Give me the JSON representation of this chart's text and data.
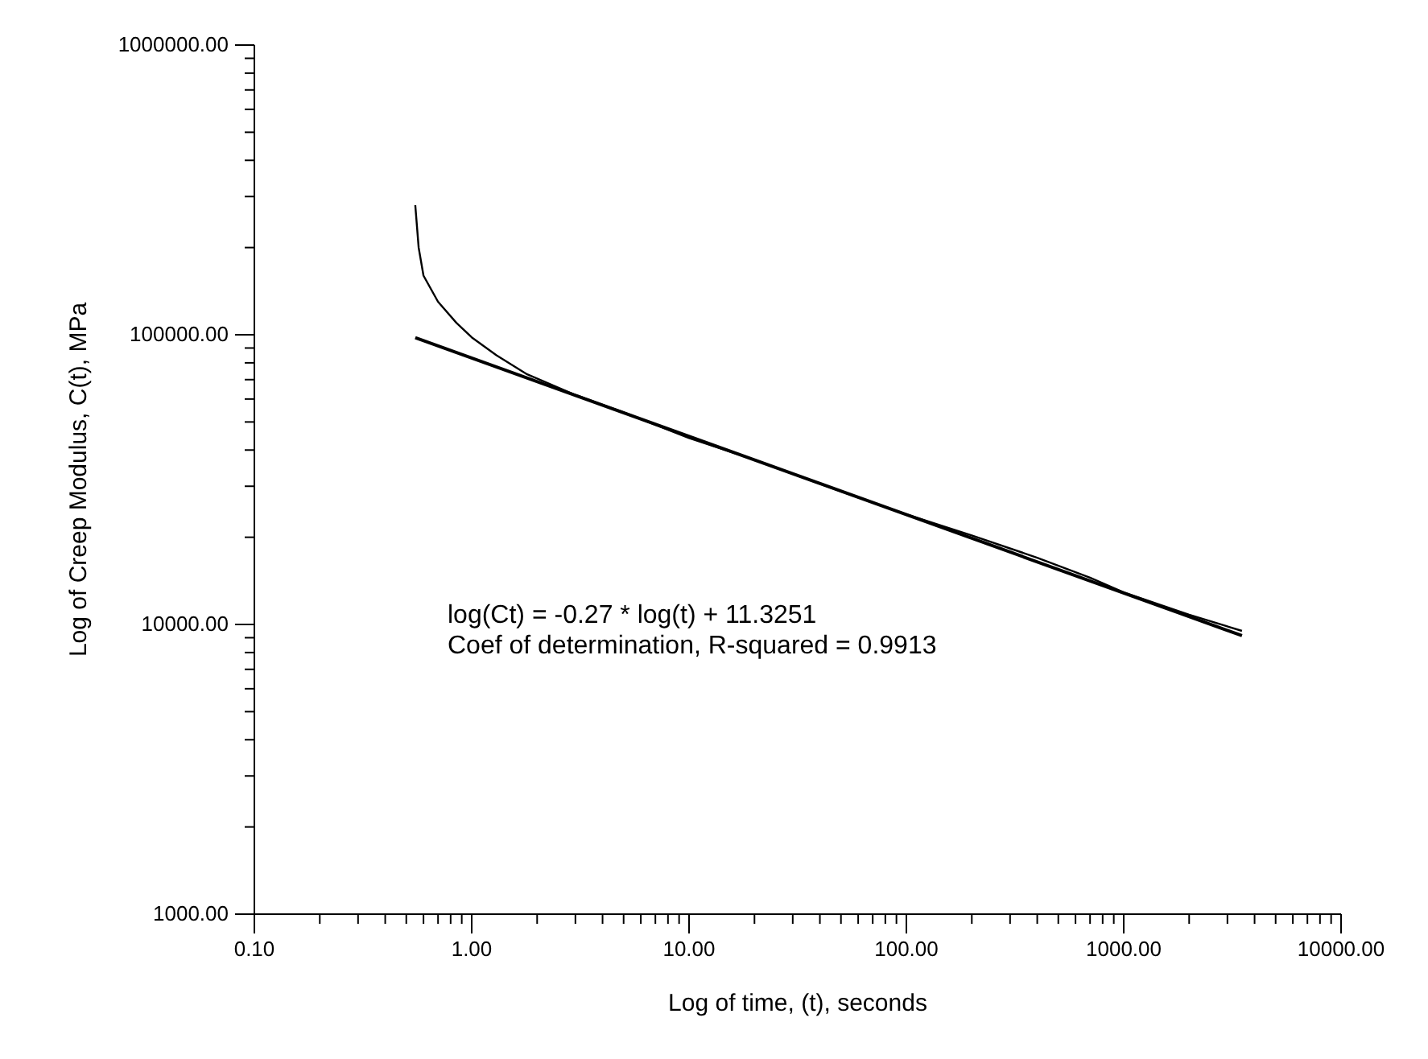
{
  "chart_data": {
    "type": "line",
    "xlabel": "Log of time, (t), seconds",
    "ylabel": "Log of Creep Modulus, C(t), MPa",
    "log": "xy",
    "grid": false,
    "legend": false,
    "marker": "none",
    "line_style": "solid",
    "xlim": [
      0.1,
      10000
    ],
    "ylim": [
      1000,
      1000000
    ],
    "xticks": [
      {
        "value": 0.1,
        "label": "0.10"
      },
      {
        "value": 0.2,
        "label": null
      },
      {
        "value": 0.3,
        "label": null
      },
      {
        "value": 0.4,
        "label": null
      },
      {
        "value": 0.5,
        "label": null
      },
      {
        "value": 0.6,
        "label": null
      },
      {
        "value": 0.7,
        "label": null
      },
      {
        "value": 0.8,
        "label": null
      },
      {
        "value": 0.9,
        "label": null
      },
      {
        "value": 1,
        "label": "1.00"
      },
      {
        "value": 2,
        "label": null
      },
      {
        "value": 3,
        "label": null
      },
      {
        "value": 4,
        "label": null
      },
      {
        "value": 5,
        "label": null
      },
      {
        "value": 6,
        "label": null
      },
      {
        "value": 7,
        "label": null
      },
      {
        "value": 8,
        "label": null
      },
      {
        "value": 9,
        "label": null
      },
      {
        "value": 10,
        "label": "10.00"
      },
      {
        "value": 20,
        "label": null
      },
      {
        "value": 30,
        "label": null
      },
      {
        "value": 40,
        "label": null
      },
      {
        "value": 50,
        "label": null
      },
      {
        "value": 60,
        "label": null
      },
      {
        "value": 70,
        "label": null
      },
      {
        "value": 80,
        "label": null
      },
      {
        "value": 90,
        "label": null
      },
      {
        "value": 100,
        "label": "100.00"
      },
      {
        "value": 200,
        "label": null
      },
      {
        "value": 300,
        "label": null
      },
      {
        "value": 400,
        "label": null
      },
      {
        "value": 500,
        "label": null
      },
      {
        "value": 600,
        "label": null
      },
      {
        "value": 700,
        "label": null
      },
      {
        "value": 800,
        "label": null
      },
      {
        "value": 900,
        "label": null
      },
      {
        "value": 1000,
        "label": "1000.00"
      },
      {
        "value": 2000,
        "label": null
      },
      {
        "value": 3000,
        "label": null
      },
      {
        "value": 4000,
        "label": null
      },
      {
        "value": 5000,
        "label": null
      },
      {
        "value": 6000,
        "label": null
      },
      {
        "value": 7000,
        "label": null
      },
      {
        "value": 8000,
        "label": null
      },
      {
        "value": 9000,
        "label": null
      },
      {
        "value": 10000,
        "label": "10000.00"
      }
    ],
    "yticks": [
      {
        "value": 1000,
        "label": "1000.00"
      },
      {
        "value": 2000,
        "label": null
      },
      {
        "value": 3000,
        "label": null
      },
      {
        "value": 4000,
        "label": null
      },
      {
        "value": 5000,
        "label": null
      },
      {
        "value": 6000,
        "label": null
      },
      {
        "value": 7000,
        "label": null
      },
      {
        "value": 8000,
        "label": null
      },
      {
        "value": 9000,
        "label": null
      },
      {
        "value": 10000,
        "label": "10000.00"
      },
      {
        "value": 20000,
        "label": null
      },
      {
        "value": 30000,
        "label": null
      },
      {
        "value": 40000,
        "label": null
      },
      {
        "value": 50000,
        "label": null
      },
      {
        "value": 60000,
        "label": null
      },
      {
        "value": 70000,
        "label": null
      },
      {
        "value": 80000,
        "label": null
      },
      {
        "value": 90000,
        "label": null
      },
      {
        "value": 100000,
        "label": "100000.00"
      },
      {
        "value": 200000,
        "label": null
      },
      {
        "value": 300000,
        "label": null
      },
      {
        "value": 400000,
        "label": null
      },
      {
        "value": 500000,
        "label": null
      },
      {
        "value": 600000,
        "label": null
      },
      {
        "value": 700000,
        "label": null
      },
      {
        "value": 800000,
        "label": null
      },
      {
        "value": 900000,
        "label": null
      },
      {
        "value": 1000000,
        "label": "1000000.00"
      }
    ],
    "series": [
      {
        "color": "#000000",
        "x": [
          0.55,
          0.57,
          0.6,
          0.7,
          0.85,
          1,
          1.3,
          1.8,
          3,
          5,
          10,
          20,
          50,
          100,
          200,
          400,
          700,
          1000,
          2000,
          3500
        ],
        "values": [
          280000,
          200000,
          160000,
          130000,
          110000,
          98000,
          85000,
          73000,
          62000,
          54000,
          44000,
          37000,
          28800,
          24000,
          20300,
          17000,
          14500,
          12900,
          10800,
          9500
        ]
      },
      {
        "color": "#000000",
        "x": [
          0.55,
          3500
        ],
        "values": [
          97700,
          9150
        ]
      }
    ],
    "annotations": [
      "log(Ct) = -0.27 * log(t) + 11.3251",
      "Coef of determination, R-squared = 0.9913"
    ]
  }
}
